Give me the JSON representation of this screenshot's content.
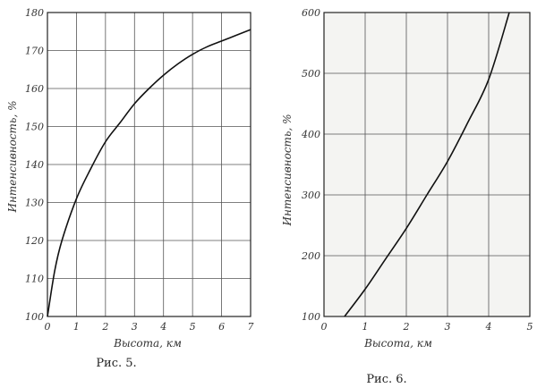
{
  "chart_data": [
    {
      "type": "line",
      "caption": "Рис. 5.",
      "xlabel": "Высота, км",
      "ylabel": "Интенсивность, %",
      "xlim": [
        0,
        7
      ],
      "ylim": [
        100,
        180
      ],
      "xticks": [
        0,
        1,
        2,
        3,
        4,
        5,
        6,
        7
      ],
      "yticks": [
        100,
        110,
        120,
        130,
        140,
        150,
        160,
        170,
        180
      ],
      "grid": true,
      "series": [
        {
          "x": [
            0,
            0.25,
            0.5,
            1,
            1.5,
            2,
            2.5,
            3,
            3.5,
            4,
            4.5,
            5,
            5.5,
            6,
            6.5,
            7
          ],
          "y": [
            100,
            112,
            120,
            131,
            139,
            146,
            151,
            156,
            160,
            163.5,
            166.5,
            169,
            171,
            172.5,
            174,
            175.5
          ]
        }
      ]
    },
    {
      "type": "line",
      "caption": "Рис. 6.",
      "xlabel": "Высота, км",
      "ylabel": "Интенсивность, %",
      "xlim": [
        0,
        5
      ],
      "ylim": [
        100,
        600
      ],
      "xticks": [
        0,
        1,
        2,
        3,
        4,
        5
      ],
      "yticks": [
        100,
        200,
        300,
        400,
        500,
        600
      ],
      "grid": true,
      "series": [
        {
          "x": [
            0.5,
            1,
            1.5,
            2,
            2.5,
            3,
            3.5,
            4,
            4.5
          ],
          "y": [
            100,
            145,
            195,
            245,
            300,
            355,
            420,
            490,
            600
          ]
        }
      ]
    }
  ]
}
